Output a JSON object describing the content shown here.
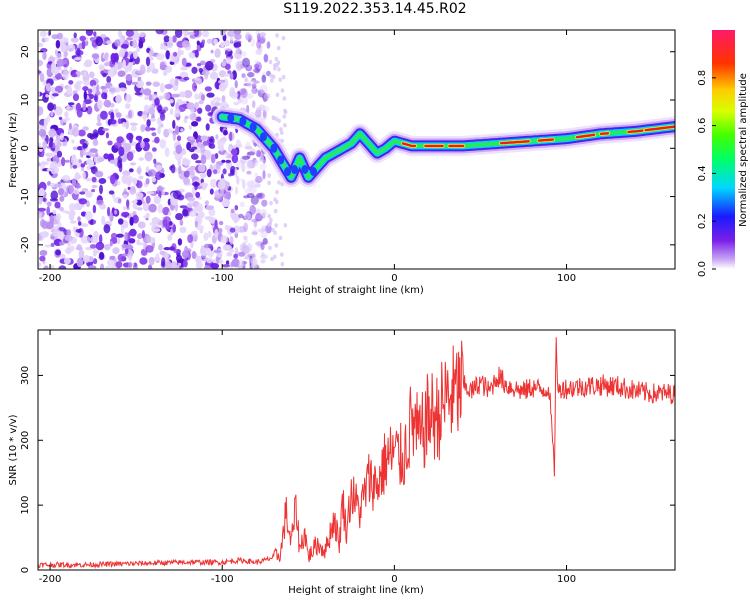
{
  "title": "S119.2022.353.14.45.R02",
  "colors": {
    "snr_line": "#ee3333",
    "spectrogram_noise": "#6622ee",
    "axes": "#000000"
  },
  "chart_data": [
    {
      "type": "heatmap",
      "xlabel": "Height of straight line (km)",
      "ylabel": "Frequency (Hz)",
      "xlim": [
        -207,
        163
      ],
      "ylim": [
        -25,
        24.5
      ],
      "x_ticks": [
        -200,
        -100,
        0,
        100
      ],
      "y_ticks": [
        -20,
        -10,
        0,
        10,
        20
      ],
      "colorbar": {
        "label": "Normalized spectral amplitude",
        "range": [
          0.0,
          1.0
        ],
        "ticks": [
          0.0,
          0.2,
          0.4,
          0.6,
          0.8
        ],
        "colormap": "rainbow"
      },
      "noise_region_x": [
        -207,
        -73
      ],
      "ridge": {
        "x": [
          -100,
          -90,
          -80,
          -70,
          -65,
          -60,
          -55,
          -50,
          -45,
          -40,
          -35,
          -30,
          -25,
          -20,
          -15,
          -10,
          -5,
          0,
          10,
          20,
          40,
          60,
          80,
          100,
          120,
          140,
          163
        ],
        "y": [
          6.5,
          6,
          4,
          0,
          -3,
          -6,
          -2,
          -6,
          -4,
          -2,
          -1,
          0,
          1,
          3,
          1,
          -1,
          0,
          1.5,
          0.5,
          0.5,
          0.5,
          1,
          1.5,
          2,
          3,
          3.5,
          4.5
        ]
      }
    },
    {
      "type": "line",
      "xlabel": "Height of straight line (km)",
      "ylabel": "SNR (10 * v/v)",
      "xlim": [
        -207,
        163
      ],
      "ylim": [
        0,
        370
      ],
      "x_ticks": [
        -200,
        -100,
        0,
        100
      ],
      "y_ticks": [
        0,
        100,
        200,
        300
      ],
      "series": [
        {
          "x": [
            -207,
            -180,
            -150,
            -120,
            -100,
            -90,
            -80,
            -75,
            -70,
            -66,
            -63,
            -60,
            -57,
            -55,
            -52,
            -50,
            -45,
            -40,
            -35,
            -32,
            -30,
            -28,
            -25,
            -20,
            -15,
            -10,
            -5,
            0,
            5,
            10,
            15,
            20,
            25,
            30,
            35,
            40,
            45,
            50,
            55,
            60,
            65,
            70,
            75,
            80,
            85,
            90,
            93,
            94,
            95,
            97,
            100,
            110,
            120,
            130,
            140,
            150,
            163
          ],
          "y": [
            8,
            8,
            10,
            12,
            12,
            15,
            12,
            15,
            20,
            25,
            90,
            40,
            100,
            30,
            60,
            20,
            40,
            30,
            80,
            40,
            110,
            60,
            120,
            90,
            140,
            130,
            170,
            180,
            170,
            230,
            200,
            240,
            235,
            265,
            270,
            285,
            275,
            290,
            275,
            300,
            285,
            280,
            275,
            282,
            278,
            280,
            150,
            370,
            270,
            282,
            280,
            283,
            285,
            283,
            276,
            272,
            272
          ]
        }
      ]
    }
  ]
}
